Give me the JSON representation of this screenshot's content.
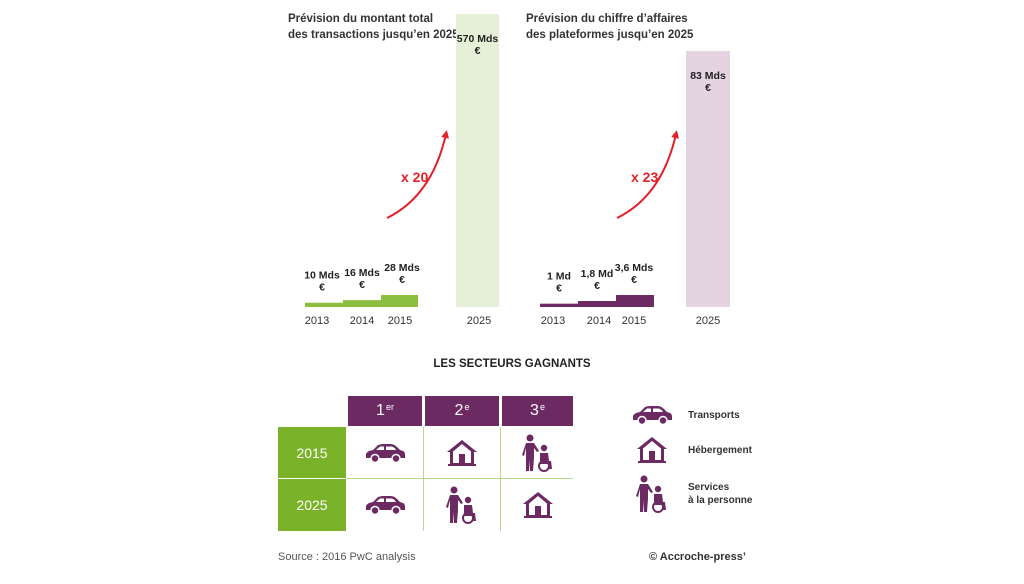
{
  "chart_data": [
    {
      "type": "bar",
      "title": "Prévision du montant total des transactions jusqu’en 2025",
      "title_lines": [
        "Prévision du montant total",
        "des transactions jusqu’en 2025"
      ],
      "categories": [
        "2013",
        "2014",
        "2015",
        "2025"
      ],
      "values": [
        10,
        16,
        28,
        570
      ],
      "value_labels": [
        [
          "10 Mds",
          "€"
        ],
        [
          "16 Mds",
          "€"
        ],
        [
          "28 Mds",
          "€"
        ],
        [
          "570 Mds",
          "€"
        ]
      ],
      "unit": "Mds €",
      "multiplier_label": "x 20",
      "colors": {
        "bars": "#8cbf3f",
        "forecast": "#e6f0d6",
        "arrow": "#e3212b"
      }
    },
    {
      "type": "bar",
      "title": "Prévision du chiffre d’affaires des plateformes jusqu’en 2025",
      "title_lines": [
        "Prévision du chiffre d’affaires",
        "des plateformes jusqu’en 2025"
      ],
      "categories": [
        "2013",
        "2014",
        "2015",
        "2025"
      ],
      "values": [
        1,
        1.8,
        3.6,
        83
      ],
      "value_labels": [
        [
          "1 Md",
          "€"
        ],
        [
          "1,8 Md",
          "€"
        ],
        [
          "3,6 Mds",
          "€"
        ],
        [
          "83 Mds",
          "€"
        ]
      ],
      "unit": "Mds €",
      "multiplier_label": "x 23",
      "colors": {
        "bars": "#6b2a62",
        "forecast": "#e4d4e1",
        "arrow": "#e3212b"
      }
    }
  ],
  "sectors": {
    "title": "LES SECTEURS GAGNANTS",
    "ranks": [
      {
        "num": "1",
        "suffix": "er"
      },
      {
        "num": "2",
        "suffix": "e"
      },
      {
        "num": "3",
        "suffix": "e"
      }
    ],
    "rows": [
      {
        "year": "2015",
        "icons": [
          "car-icon",
          "house-icon",
          "caregiver-icon"
        ]
      },
      {
        "year": "2025",
        "icons": [
          "car-icon",
          "caregiver-icon",
          "house-icon"
        ]
      }
    ],
    "legend": [
      {
        "icon": "car-icon",
        "label_lines": [
          "Transports"
        ]
      },
      {
        "icon": "house-icon",
        "label_lines": [
          "Hébergement"
        ]
      },
      {
        "icon": "caregiver-icon",
        "label_lines": [
          "Services",
          "à la personne"
        ]
      }
    ],
    "colors": {
      "header": "#6b2a62",
      "year": "#7ab329",
      "icon": "#6b2a62"
    }
  },
  "footer": {
    "source": "Source : 2016 PwC analysis",
    "credit": "© Accroche-press’"
  }
}
